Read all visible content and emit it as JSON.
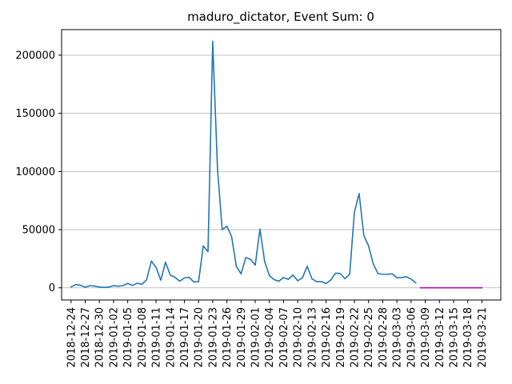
{
  "chart_data": {
    "type": "line",
    "title": "maduro_dictator, Event Sum: 0",
    "xlabel": "",
    "ylabel": "",
    "x_start": "2018-12-24",
    "x_end": "2019-03-23",
    "xlim": [
      "2018-12-22",
      "2019-03-25"
    ],
    "ylim": [
      -10500,
      222000
    ],
    "grid": "y",
    "x_ticks": [
      "2018-12-24",
      "2018-12-27",
      "2018-12-30",
      "2019-01-02",
      "2019-01-05",
      "2019-01-08",
      "2019-01-11",
      "2019-01-14",
      "2019-01-17",
      "2019-01-20",
      "2019-01-23",
      "2019-01-26",
      "2019-01-29",
      "2019-02-01",
      "2019-02-04",
      "2019-02-07",
      "2019-02-10",
      "2019-02-13",
      "2019-02-16",
      "2019-02-19",
      "2019-02-22",
      "2019-02-25",
      "2019-02-28",
      "2019-03-03",
      "2019-03-06",
      "2019-03-09",
      "2019-03-12",
      "2019-03-15",
      "2019-03-18",
      "2019-03-21"
    ],
    "y_ticks": [
      0,
      50000,
      100000,
      150000,
      200000
    ],
    "series": [
      {
        "color": "#1f77b4",
        "x": [
          "2018-12-24",
          "2018-12-25",
          "2018-12-26",
          "2018-12-27",
          "2018-12-28",
          "2018-12-29",
          "2018-12-30",
          "2018-12-31",
          "2019-01-01",
          "2019-01-02",
          "2019-01-03",
          "2019-01-04",
          "2019-01-05",
          "2019-01-06",
          "2019-01-07",
          "2019-01-08",
          "2019-01-09",
          "2019-01-10",
          "2019-01-11",
          "2019-01-12",
          "2019-01-13",
          "2019-01-14",
          "2019-01-15",
          "2019-01-16",
          "2019-01-17",
          "2019-01-18",
          "2019-01-19",
          "2019-01-20",
          "2019-01-21",
          "2019-01-22",
          "2019-01-23",
          "2019-01-24",
          "2019-01-25",
          "2019-01-26",
          "2019-01-27",
          "2019-01-28",
          "2019-01-29",
          "2019-01-30",
          "2019-01-31",
          "2019-02-01",
          "2019-02-02",
          "2019-02-03",
          "2019-02-04",
          "2019-02-05",
          "2019-02-06",
          "2019-02-07",
          "2019-02-08",
          "2019-02-09",
          "2019-02-10",
          "2019-02-11",
          "2019-02-12",
          "2019-02-13",
          "2019-02-14",
          "2019-02-15",
          "2019-02-16",
          "2019-02-17",
          "2019-02-18",
          "2019-02-19",
          "2019-02-20",
          "2019-02-21",
          "2019-02-22",
          "2019-02-23",
          "2019-02-24",
          "2019-02-25",
          "2019-02-26",
          "2019-02-27",
          "2019-02-28",
          "2019-03-01",
          "2019-03-02",
          "2019-03-03",
          "2019-03-04",
          "2019-03-05",
          "2019-03-06",
          "2019-03-07"
        ],
        "values": [
          700,
          2800,
          2200,
          500,
          1800,
          1500,
          600,
          300,
          600,
          1800,
          1400,
          1800,
          3800,
          2000,
          3900,
          3000,
          6800,
          23000,
          17500,
          6500,
          22000,
          11000,
          9000,
          5700,
          8500,
          9000,
          5000,
          5200,
          36000,
          31000,
          212000,
          103000,
          50000,
          53000,
          44000,
          18500,
          12000,
          26000,
          24500,
          19500,
          50500,
          22500,
          10500,
          7000,
          5700,
          8800,
          7300,
          11000,
          6000,
          8600,
          18500,
          7800,
          5300,
          5300,
          3600,
          6700,
          12500,
          12300,
          7800,
          11700,
          65000,
          81000,
          45000,
          36000,
          20500,
          12200,
          11600,
          11600,
          12000,
          8600,
          8800,
          9500,
          7500,
          4300
        ]
      },
      {
        "color": "#bf00bf",
        "x": [
          "2019-03-08",
          "2019-03-21"
        ],
        "values": [
          0,
          0
        ]
      }
    ]
  }
}
